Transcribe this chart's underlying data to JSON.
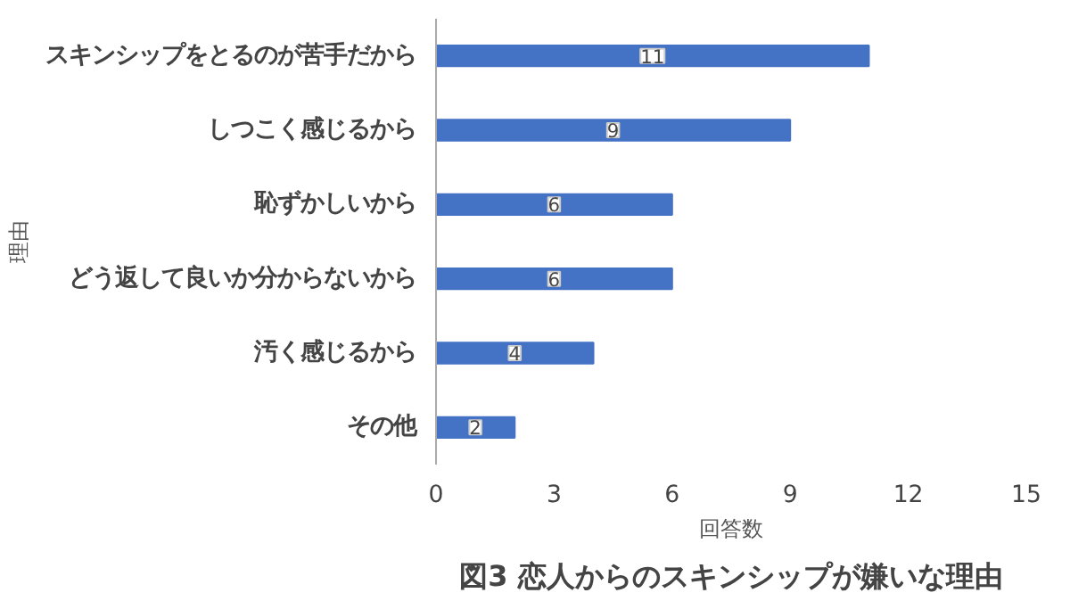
{
  "chart_data": {
    "type": "bar",
    "orientation": "horizontal",
    "title": "図3 恋人からのスキンシップが嫌いな理由",
    "xlabel": "回答数",
    "ylabel": "理由",
    "categories": [
      "スキンシップをとるのが苦手だから",
      "しつこく感じるから",
      "恥ずかしいから",
      "どう返して良いか分からないから",
      "汚く感じるから",
      "その他"
    ],
    "values": [
      11,
      9,
      6,
      6,
      4,
      2
    ],
    "color": "#4472c4",
    "xlim": [
      0,
      15
    ],
    "xticks": [
      0,
      3,
      6,
      9,
      12,
      15
    ],
    "grid": false,
    "data_labels": true
  }
}
